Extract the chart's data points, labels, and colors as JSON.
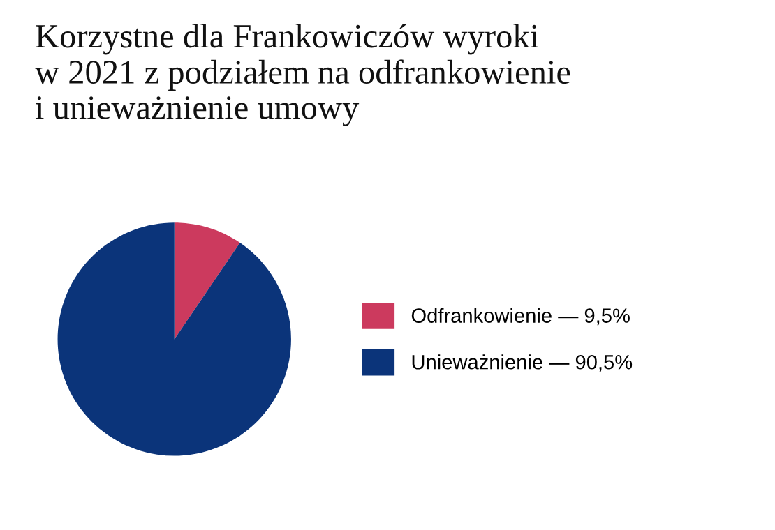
{
  "chart_data": {
    "type": "pie",
    "title": "Korzystne dla Frankowiczów wyroki\nw 2021 z podziałem na odfrankowienie\ni unieważnienie umowy",
    "categories": [
      "Odfrankowienie — 9,5%",
      "Unieważnienie — 90,5%"
    ],
    "values": [
      9.5,
      90.5
    ],
    "colors": [
      "#cc3a5e",
      "#0b347a"
    ],
    "legend": "right"
  }
}
